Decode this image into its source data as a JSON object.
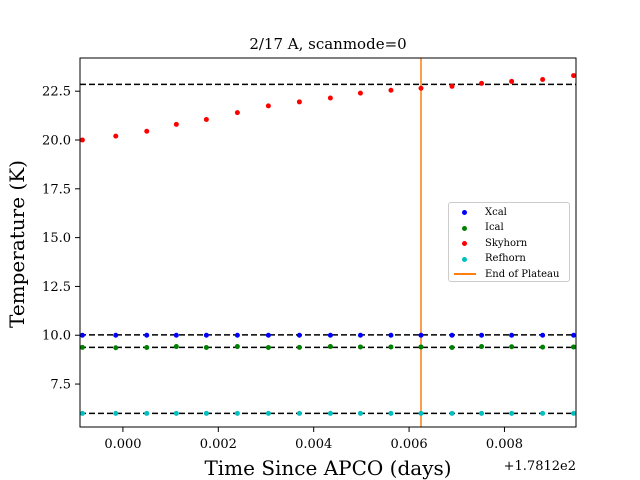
{
  "chart_data": {
    "type": "scatter",
    "title": "2/17 A, scanmode=0",
    "xlabel": "Time Since APCO (days)",
    "ylabel": "Temperature (K)",
    "x_offset_label": "+1.7812e2",
    "xlim": [
      -0.0009,
      0.0095
    ],
    "ylim": [
      5.3,
      24.2
    ],
    "x_ticks": [
      0.0,
      0.002,
      0.004,
      0.006,
      0.008
    ],
    "x_tick_labels": [
      "0.000",
      "0.002",
      "0.004",
      "0.006",
      "0.008"
    ],
    "y_ticks": [
      7.5,
      10.0,
      12.5,
      15.0,
      17.5,
      20.0,
      22.5
    ],
    "y_tick_labels": [
      "7.5",
      "10.0",
      "12.5",
      "15.0",
      "17.5",
      "20.0",
      "22.5"
    ],
    "x": [
      -0.00085,
      -0.00015,
      0.0005,
      0.00112,
      0.00175,
      0.0024,
      0.00305,
      0.0037,
      0.00435,
      0.00498,
      0.00562,
      0.00625,
      0.0069,
      0.00752,
      0.00815,
      0.0088,
      0.00945
    ],
    "series": [
      {
        "name": "Xcal",
        "color": "#0000ff",
        "marker": "dot",
        "values": [
          10.0,
          10.0,
          10.0,
          10.0,
          10.0,
          10.0,
          10.0,
          10.0,
          10.0,
          10.0,
          10.0,
          10.0,
          10.0,
          10.0,
          10.0,
          10.0,
          10.0
        ]
      },
      {
        "name": "Ical",
        "color": "#008000",
        "marker": "dot",
        "values": [
          9.38,
          9.36,
          9.37,
          9.42,
          9.37,
          9.42,
          9.37,
          9.38,
          9.42,
          9.4,
          9.4,
          9.4,
          9.37,
          9.42,
          9.41,
          9.39,
          9.4
        ]
      },
      {
        "name": "Skyhorn",
        "color": "#ff0000",
        "marker": "dot",
        "values": [
          20.0,
          20.2,
          20.45,
          20.8,
          21.05,
          21.4,
          21.75,
          21.95,
          22.15,
          22.4,
          22.55,
          22.65,
          22.75,
          22.9,
          23.0,
          23.1,
          23.3
        ]
      },
      {
        "name": "Refhorn",
        "color": "#00bfbf",
        "marker": "dot",
        "values": [
          6.0,
          6.0,
          6.0,
          6.0,
          6.0,
          6.0,
          6.0,
          6.0,
          6.0,
          6.0,
          6.0,
          6.0,
          6.0,
          6.0,
          6.0,
          6.0,
          6.0
        ]
      }
    ],
    "hlines": [
      22.85,
      10.02,
      9.38,
      6.0
    ],
    "vline": {
      "name": "End of Plateau",
      "x": 0.00625,
      "color": "#ff7f0e"
    },
    "legend_position": "center-right",
    "grid": false
  }
}
